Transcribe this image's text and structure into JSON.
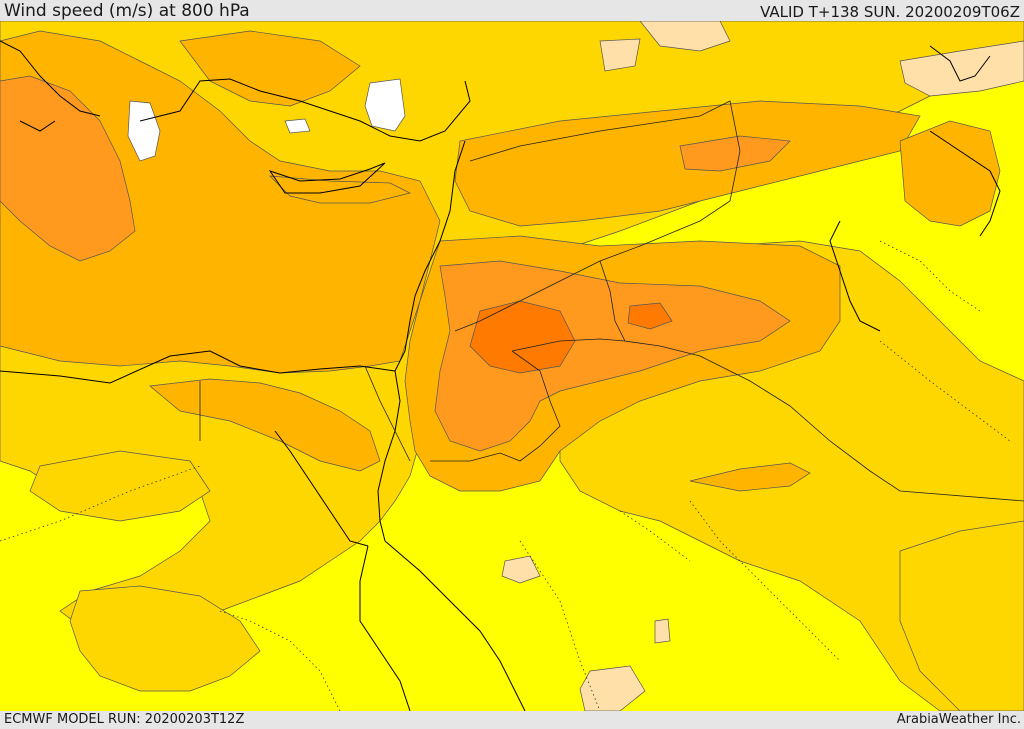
{
  "header": {
    "title": "Wind speed (m/s) at 800 hPa",
    "valid": "VALID T+138 SUN. 20200209T06Z"
  },
  "footer": {
    "model_run": "ECMWF MODEL RUN: 20200203T12Z",
    "credit": "ArabiaWeather Inc."
  },
  "map": {
    "field": "wind-speed-800hPa",
    "colors": {
      "very_low": "#ffffff",
      "low": "#ffe0a8",
      "base": "#ffff00",
      "light": "#ffd700",
      "medium": "#ffb400",
      "strong": "#ff9a1e",
      "stronger": "#ff7a00",
      "coast": "#000000"
    }
  }
}
